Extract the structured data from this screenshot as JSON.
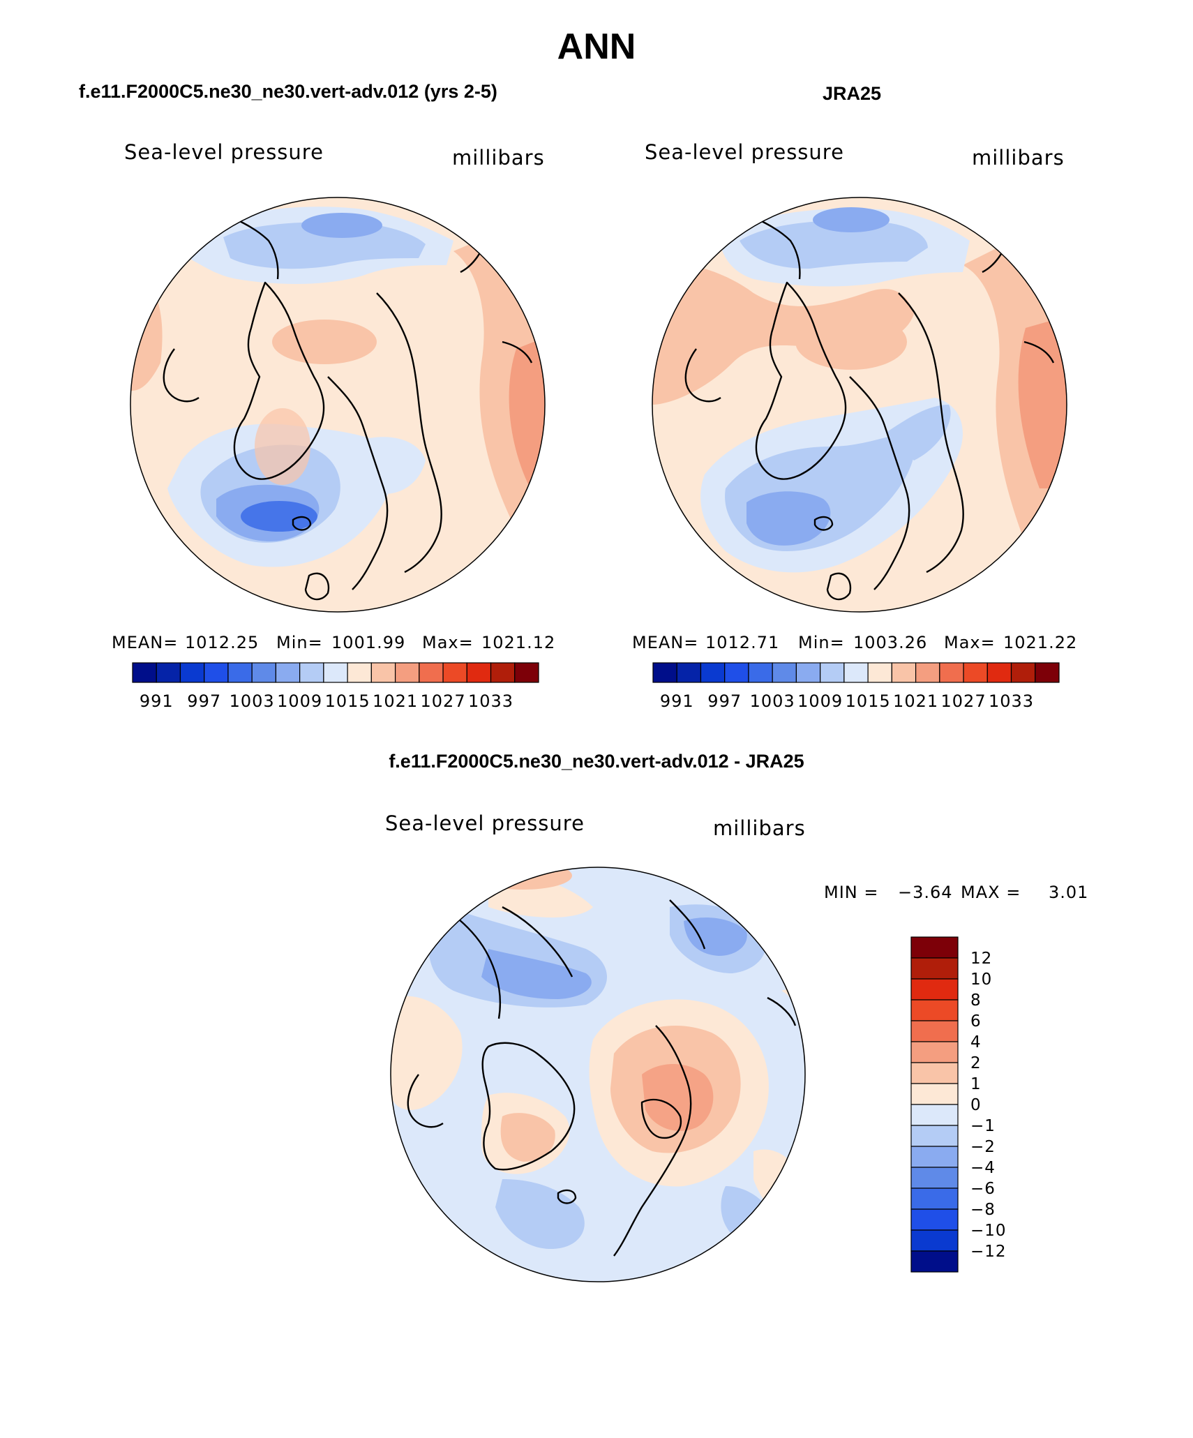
{
  "figure": {
    "title": "ANN"
  },
  "panels": [
    {
      "id": "model",
      "case_title": "f.e11.F2000C5.ne30_ne30.vert-adv.012 (yrs 2-5)",
      "variable": "Sea-level pressure",
      "units": "millibars",
      "stats": {
        "mean_label": "MEAN=",
        "mean": "1012.25",
        "min_label": "Min=",
        "min": "1001.99",
        "max_label": "Max=",
        "max": "1021.12"
      }
    },
    {
      "id": "obs",
      "case_title": "JRA25",
      "variable": "Sea-level pressure",
      "units": "millibars",
      "stats": {
        "mean_label": "MEAN=",
        "mean": "1012.71",
        "min_label": "Min=",
        "min": "1003.26",
        "max_label": "Max=",
        "max": "1021.22"
      }
    },
    {
      "id": "diff",
      "case_title": "f.e11.F2000C5.ne30_ne30.vert-adv.012 - JRA25",
      "variable": "Sea-level pressure",
      "units": "millibars",
      "stats": {
        "min_label": "MIN =",
        "min": "−3.64",
        "max_label": "MAX =",
        "max": "3.01"
      }
    }
  ],
  "colorbar_abs": {
    "tick_labels": [
      "991",
      "997",
      "1003",
      "1009",
      "1015",
      "1021",
      "1027",
      "1033"
    ],
    "colors": [
      "#000e8a",
      "#0523a8",
      "#0a3ad0",
      "#1f4fe8",
      "#3a6be8",
      "#5f8ae8",
      "#8aabf0",
      "#b4ccf5",
      "#dce8fa",
      "#fde8d6",
      "#f9c4a8",
      "#f49e80",
      "#f06e4e",
      "#ec4a26",
      "#e02a10",
      "#b01e0a",
      "#7d0008"
    ]
  },
  "colorbar_diff": {
    "tick_labels": [
      "12",
      "10",
      "8",
      "6",
      "4",
      "2",
      "1",
      "0",
      "−1",
      "−2",
      "−4",
      "−6",
      "−8",
      "−10",
      "−12"
    ],
    "colors": [
      "#7d0008",
      "#b01e0a",
      "#e02a10",
      "#ec4a26",
      "#f06e4e",
      "#f49e80",
      "#f9c4a8",
      "#fde8d6",
      "#dce8fa",
      "#b4ccf5",
      "#8aabf0",
      "#5f8ae8",
      "#3a6be8",
      "#1f4fe8",
      "#0a3ad0",
      "#000e8a"
    ]
  },
  "fill_colors": {
    "deep_blue": "#3a6be8",
    "mid_blue": "#8aabf0",
    "light_blue": "#b4ccf5",
    "pale_blue": "#dce8fa",
    "cream": "#fde8d6",
    "peach": "#f9c4a8",
    "salmon": "#f49e80"
  }
}
